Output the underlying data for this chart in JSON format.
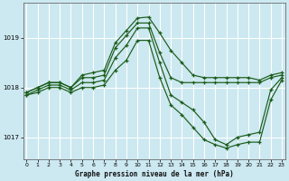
{
  "title": "Graphe pression niveau de la mer (hPa)",
  "bg_color": "#cce8f0",
  "grid_color": "#ffffff",
  "line_color": "#1a5c1a",
  "y_ticks": [
    1017,
    1018,
    1019
  ],
  "x_ticks": [
    0,
    1,
    2,
    3,
    4,
    5,
    6,
    7,
    8,
    9,
    10,
    11,
    12,
    13,
    14,
    15,
    16,
    17,
    18,
    19,
    20,
    21,
    22,
    23
  ],
  "ylim": [
    1016.55,
    1019.7
  ],
  "xlim": [
    -0.3,
    23.3
  ],
  "line1": [
    1017.9,
    1018.0,
    1018.1,
    1018.1,
    1018.0,
    1018.25,
    1018.3,
    1018.35,
    1018.9,
    1019.15,
    1019.4,
    1019.42,
    1019.1,
    1018.75,
    1018.5,
    1018.25,
    1018.2,
    1018.2,
    1018.2,
    1018.2,
    1018.2,
    1018.15,
    1018.25,
    1018.3
  ],
  "line2": [
    1017.9,
    1018.0,
    1018.1,
    1018.1,
    1018.0,
    1018.2,
    1018.2,
    1018.25,
    1018.8,
    1019.05,
    1019.3,
    1019.3,
    1018.7,
    1018.2,
    1018.1,
    1018.1,
    1018.1,
    1018.1,
    1018.1,
    1018.1,
    1018.1,
    1018.1,
    1018.2,
    1018.25
  ],
  "line3": [
    1017.85,
    1017.95,
    1018.05,
    1018.05,
    1017.95,
    1018.1,
    1018.1,
    1018.15,
    1018.6,
    1018.85,
    1019.2,
    1019.2,
    1018.5,
    1017.85,
    1017.7,
    1017.55,
    1017.3,
    1016.95,
    1016.85,
    1017.0,
    1017.05,
    1017.1,
    1017.95,
    1018.2
  ],
  "line4": [
    1017.85,
    1017.9,
    1018.0,
    1018.0,
    1017.9,
    1018.0,
    1018.0,
    1018.05,
    1018.35,
    1018.55,
    1018.95,
    1018.95,
    1018.2,
    1017.65,
    1017.45,
    1017.2,
    1016.95,
    1016.85,
    1016.78,
    1016.85,
    1016.9,
    1016.9,
    1017.75,
    1018.15
  ]
}
